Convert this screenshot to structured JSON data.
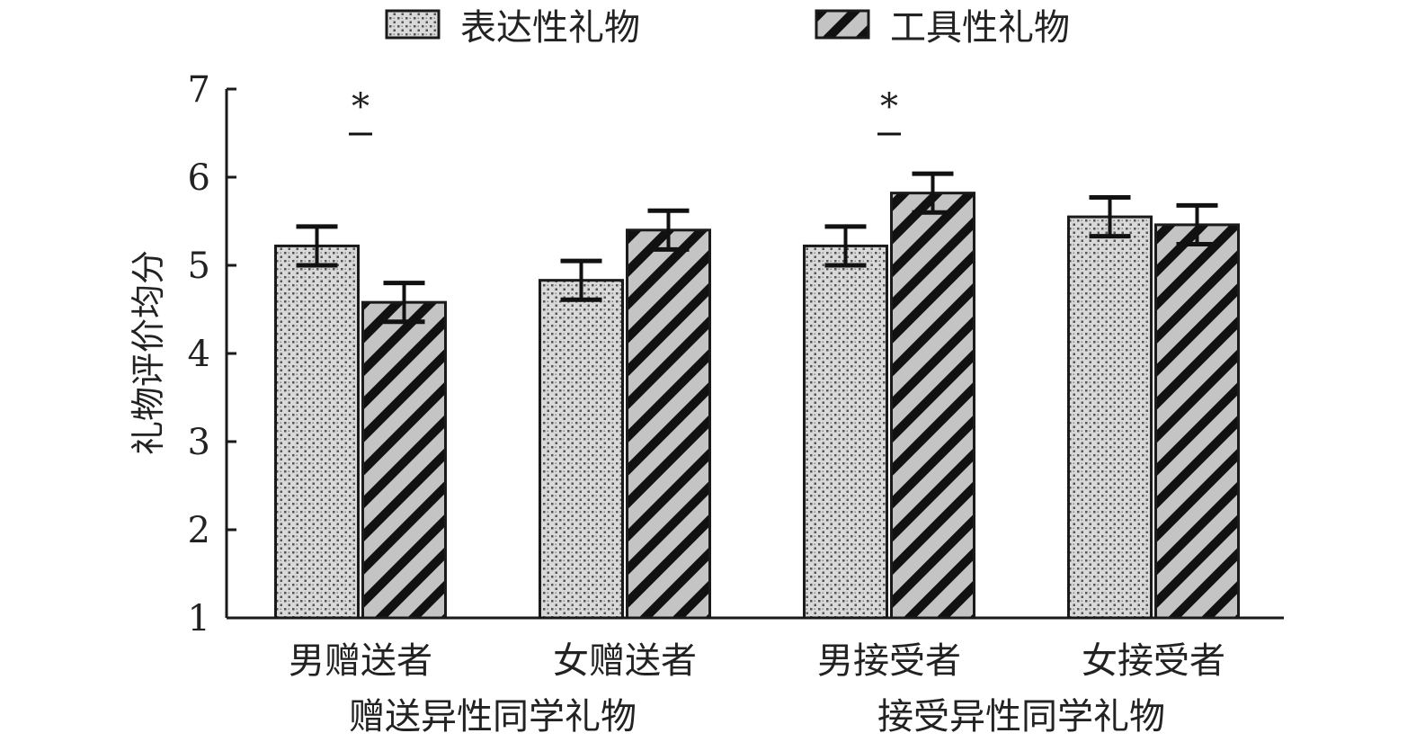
{
  "chart_data": {
    "type": "bar",
    "ylabel": "礼物评价均分",
    "ylim": [
      1,
      7
    ],
    "yticks": [
      1,
      2,
      3,
      4,
      5,
      6,
      7
    ],
    "grid": false,
    "legend_position": "top-center",
    "categories": [
      "男赠送者",
      "女赠送者",
      "男接受者",
      "女接受者"
    ],
    "groups": [
      {
        "label": "赠送异性同学礼物",
        "categories": [
          "男赠送者",
          "女赠送者"
        ]
      },
      {
        "label": "接受异性同学礼物",
        "categories": [
          "男接受者",
          "女接受者"
        ]
      }
    ],
    "series": [
      {
        "name": "表达性礼物",
        "pattern": "dotted",
        "values": [
          5.22,
          4.83,
          5.22,
          5.55
        ],
        "error": [
          0.22,
          0.22,
          0.22,
          0.22
        ]
      },
      {
        "name": "工具性礼物",
        "pattern": "hatched",
        "values": [
          4.58,
          5.4,
          5.82,
          5.46
        ],
        "error": [
          0.22,
          0.22,
          0.22,
          0.22
        ]
      }
    ],
    "annotations": [
      {
        "text": "*",
        "category": "男赠送者"
      },
      {
        "text": "*",
        "category": "男接受者"
      }
    ],
    "colors": {
      "bar_fill": "#c8c8c8",
      "stroke": "#1a1a1a",
      "dot": "#555555"
    }
  }
}
